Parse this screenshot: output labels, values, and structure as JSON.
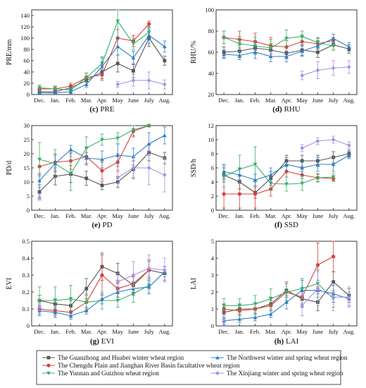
{
  "months": [
    "Dec.",
    "Jan.",
    "Feb.",
    "Mar.",
    "Apr.",
    "May",
    "June",
    "July",
    "Aug."
  ],
  "legend": [
    {
      "series": 0,
      "label": "The Guanzhong and Huabei winter wheat region"
    },
    {
      "series": 1,
      "label": "The Chengdu Plain and Jianghan River Basin facultative wheat region"
    },
    {
      "series": 2,
      "label": "The Yunnan and Guizhou wheat region"
    },
    {
      "series": 3,
      "label": "The Northwest winter and spring wheat region"
    },
    {
      "series": 4,
      "label": "The Xinjiang winter and spring wheat region"
    }
  ],
  "colors": [
    "#555555",
    "#d9403c",
    "#3ab06a",
    "#2f7fc3",
    "#a98ee0"
  ],
  "markers": [
    "square",
    "circle",
    "triangle-down",
    "triangle-up",
    "diamond"
  ],
  "chart_data": [
    {
      "id": "pre",
      "type": "line",
      "letter": "(c)",
      "caption": "PRE",
      "ylabel": "PRE/mm",
      "ylim": [
        0,
        150
      ],
      "yticks": [
        0,
        20,
        40,
        60,
        80,
        100,
        120,
        140
      ],
      "categories": [
        "Dec.",
        "Jan.",
        "Feb.",
        "Mar.",
        "Apr.",
        "May",
        "June",
        "July",
        "Aug."
      ],
      "series": [
        {
          "values": [
            5,
            5,
            12,
            25,
            40,
            55,
            42,
            100,
            60
          ],
          "err": [
            3,
            3,
            5,
            8,
            12,
            15,
            12,
            15,
            8
          ]
        },
        {
          "values": [
            10,
            10,
            15,
            30,
            35,
            100,
            95,
            125,
            null
          ],
          "err": [
            4,
            4,
            5,
            8,
            10,
            15,
            10,
            5,
            0
          ]
        },
        {
          "values": [
            12,
            10,
            8,
            30,
            55,
            130,
            90,
            110,
            null
          ],
          "err": [
            5,
            5,
            5,
            8,
            12,
            28,
            10,
            8,
            0
          ]
        },
        {
          "values": [
            3,
            3,
            5,
            18,
            50,
            85,
            65,
            105,
            85
          ],
          "err": [
            2,
            2,
            3,
            5,
            15,
            15,
            12,
            15,
            10
          ]
        },
        {
          "values": [
            null,
            null,
            null,
            null,
            null,
            18,
            25,
            25,
            18
          ],
          "err": [
            0,
            0,
            0,
            0,
            0,
            5,
            10,
            15,
            8
          ]
        }
      ]
    },
    {
      "id": "rhu",
      "type": "line",
      "letter": "(d)",
      "caption": "RHU",
      "ylabel": "RHU/%",
      "ylim": [
        20,
        100
      ],
      "yticks": [
        20,
        40,
        60,
        80,
        100
      ],
      "categories": [
        "Dec.",
        "Jan.",
        "Feb.",
        "Mar.",
        "Apr.",
        "May",
        "June",
        "July",
        "Aug."
      ],
      "series": [
        {
          "values": [
            60,
            61,
            64,
            62,
            59,
            62,
            60,
            67,
            63
          ],
          "err": [
            5,
            6,
            5,
            6,
            5,
            5,
            5,
            5,
            4
          ]
        },
        {
          "values": [
            74,
            72,
            70,
            66,
            65,
            70,
            68,
            71,
            null
          ],
          "err": [
            6,
            8,
            8,
            8,
            6,
            4,
            5,
            3,
            0
          ]
        },
        {
          "values": [
            74,
            68,
            66,
            64,
            73,
            75,
            69,
            66,
            null
          ],
          "err": [
            6,
            7,
            8,
            8,
            8,
            5,
            5,
            4,
            0
          ]
        },
        {
          "values": [
            58,
            57,
            60,
            56,
            56,
            61,
            66,
            73,
            65
          ],
          "err": [
            4,
            4,
            6,
            5,
            5,
            5,
            5,
            4,
            4
          ]
        },
        {
          "values": [
            null,
            null,
            null,
            null,
            null,
            38,
            43,
            45,
            46
          ],
          "err": [
            0,
            0,
            0,
            0,
            0,
            4,
            8,
            7,
            6
          ]
        }
      ]
    },
    {
      "id": "pd",
      "type": "line",
      "letter": "(e)",
      "caption": "PD",
      "ylabel": "PD/d",
      "ylim": [
        0,
        30
      ],
      "yticks": [
        0,
        5,
        10,
        15,
        20,
        25,
        30
      ],
      "categories": [
        "Dec.",
        "Jan.",
        "Feb.",
        "Mar.",
        "Apr.",
        "May",
        "June",
        "July",
        "Aug."
      ],
      "series": [
        {
          "values": [
            6.5,
            12,
            12.8,
            11.3,
            8.8,
            10,
            14.5,
            20.5,
            18.5
          ],
          "err": [
            2.5,
            3,
            3,
            2.5,
            1.5,
            2,
            3,
            3,
            2
          ]
        },
        {
          "values": [
            15.5,
            17,
            17.5,
            19,
            14,
            17,
            28,
            30,
            null
          ],
          "err": [
            3,
            3,
            3,
            3,
            3,
            3,
            2,
            0.5,
            0
          ]
        },
        {
          "values": [
            18,
            16.5,
            13,
            22,
            25,
            25.5,
            28.5,
            30,
            null
          ],
          "err": [
            6,
            5,
            6,
            4,
            2,
            2,
            2,
            0.5,
            0
          ]
        },
        {
          "values": [
            10.5,
            16.5,
            21.5,
            18.5,
            18,
            19.5,
            19,
            23.5,
            26.5
          ],
          "err": [
            2.5,
            3,
            1.5,
            2,
            3,
            4,
            3,
            4,
            3
          ]
        },
        {
          "values": [
            4.5,
            null,
            null,
            null,
            null,
            11.5,
            15,
            15,
            12.5
          ],
          "err": [
            1,
            0,
            0,
            0,
            0,
            2,
            4,
            6,
            6
          ]
        }
      ]
    },
    {
      "id": "ssd",
      "type": "line",
      "letter": "(f)",
      "caption": "SSD",
      "ylabel": "SSD/h",
      "ylim": [
        0,
        12
      ],
      "yticks": [
        0,
        2,
        4,
        6,
        8,
        10,
        12
      ],
      "categories": [
        "Dec.",
        "Jan.",
        "Feb.",
        "Mar.",
        "Apr.",
        "May",
        "June",
        "July",
        "Aug."
      ],
      "series": [
        {
          "values": [
            5,
            4,
            2.5,
            4.5,
            7,
            7,
            7,
            7.5,
            8
          ],
          "err": [
            1,
            1,
            0.8,
            1,
            0.8,
            0.8,
            0.8,
            0.8,
            0.5
          ]
        },
        {
          "values": [
            2.3,
            2.3,
            2.3,
            3,
            5.5,
            5,
            4.6,
            4.5,
            null
          ],
          "err": [
            2,
            2,
            2,
            1,
            0.8,
            0.5,
            0.5,
            0.4,
            0
          ]
        },
        {
          "values": [
            4.8,
            5.8,
            6.5,
            3.8,
            3.7,
            3.8,
            4.6,
            4.7,
            null
          ],
          "err": [
            1.5,
            2,
            2.5,
            1,
            1,
            1,
            0.6,
            0.5,
            0
          ]
        },
        {
          "values": [
            5.5,
            5,
            4.3,
            5,
            6.5,
            6,
            6.5,
            6.5,
            7.8
          ],
          "err": [
            1,
            1,
            0.8,
            1,
            1,
            1,
            1,
            1,
            0.5
          ]
        },
        {
          "values": [
            null,
            null,
            null,
            null,
            null,
            8.8,
            9.8,
            10,
            9.2
          ],
          "err": [
            0,
            0,
            0,
            0,
            0,
            0.5,
            0.5,
            0.5,
            0.5
          ]
        }
      ]
    },
    {
      "id": "evi",
      "type": "line",
      "letter": "(g)",
      "caption": "EVI",
      "ylabel": "EVI",
      "ylim": [
        0,
        0.5
      ],
      "yticks": [
        0,
        0.1,
        0.2,
        0.3,
        0.4,
        0.5
      ],
      "categories": [
        "Dec.",
        "Jan.",
        "Feb.",
        "Mar.",
        "Apr.",
        "May",
        "June",
        "July",
        "Aug."
      ],
      "series": [
        {
          "values": [
            0.15,
            0.13,
            0.12,
            0.22,
            0.35,
            0.31,
            0.24,
            0.33,
            0.31
          ],
          "err": [
            0.03,
            0.03,
            0.03,
            0.06,
            0.08,
            0.06,
            0.05,
            0.06,
            0.04
          ]
        },
        {
          "values": [
            0.1,
            0.09,
            0.08,
            0.14,
            0.3,
            0.22,
            0.25,
            0.33,
            null
          ],
          "err": [
            0.03,
            0.03,
            0.03,
            0.04,
            0.12,
            0.05,
            0.05,
            0.05,
            0
          ]
        },
        {
          "values": [
            0.15,
            0.15,
            0.16,
            0.14,
            0.15,
            0.15,
            0.19,
            0.24,
            null
          ],
          "err": [
            0.08,
            0.08,
            0.08,
            0.05,
            0.05,
            0.04,
            0.05,
            0.05,
            0
          ]
        },
        {
          "values": [
            0.09,
            0.08,
            0.06,
            0.09,
            0.16,
            0.2,
            0.22,
            0.23,
            0.32
          ],
          "err": [
            0.03,
            0.03,
            0.02,
            0.02,
            0.03,
            0.03,
            0.04,
            0.04,
            0.03
          ]
        },
        {
          "values": [
            0.11,
            null,
            null,
            null,
            null,
            0.26,
            0.3,
            0.34,
            0.33
          ],
          "err": [
            0.02,
            0,
            0,
            0,
            0,
            0.05,
            0.08,
            0.08,
            0.07
          ]
        }
      ]
    },
    {
      "id": "lai",
      "type": "line",
      "letter": "(h)",
      "caption": "LAI",
      "ylabel": "LAI",
      "ylim": [
        0,
        5
      ],
      "yticks": [
        0,
        1,
        2,
        3,
        4,
        5
      ],
      "categories": [
        "Dec.",
        "Jan.",
        "Feb.",
        "Mar.",
        "Apr.",
        "May",
        "June",
        "July",
        "Aug."
      ],
      "series": [
        {
          "values": [
            0.8,
            1,
            1,
            1.3,
            2.1,
            1.6,
            1.4,
            2.6,
            1.8
          ],
          "err": [
            0.3,
            0.3,
            0.3,
            0.4,
            0.4,
            0.5,
            0.5,
            0.6,
            0.4
          ]
        },
        {
          "values": [
            1,
            0.9,
            1,
            1.2,
            2,
            1.7,
            3.6,
            4.1,
            null
          ],
          "err": [
            0.3,
            0.3,
            0.3,
            0.3,
            0.6,
            0.4,
            1.3,
            0.9,
            0
          ]
        },
        {
          "values": [
            1.2,
            1.2,
            1.3,
            1.6,
            2,
            2.2,
            2.5,
            1.6,
            null
          ],
          "err": [
            0.4,
            0.4,
            0.5,
            0.6,
            0.5,
            0.6,
            0.8,
            0.5,
            0
          ]
        },
        {
          "values": [
            0.3,
            0.4,
            0.5,
            0.7,
            1.4,
            2.1,
            2.1,
            1.9,
            1.6
          ],
          "err": [
            0.2,
            0.2,
            0.2,
            0.2,
            0.4,
            0.6,
            0.6,
            0.5,
            0.4
          ]
        },
        {
          "values": [
            0.4,
            null,
            null,
            null,
            null,
            1.2,
            2.2,
            1.7,
            1.7
          ],
          "err": [
            0.2,
            0,
            0,
            0,
            0,
            0.6,
            1,
            0.8,
            0.6
          ]
        }
      ]
    }
  ]
}
